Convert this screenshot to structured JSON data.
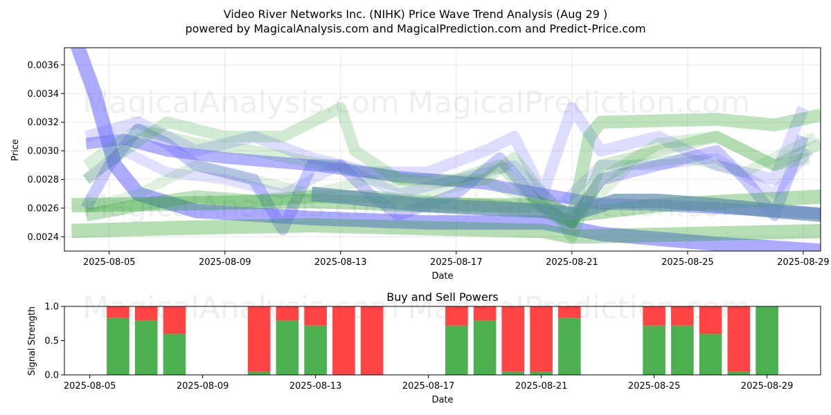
{
  "title_line1": "Video River Networks Inc. (NIHK) Price Wave Trend Analysis (Aug 29 )",
  "title_line2": "powered by MagicalAnalysis.com and MagicalPrediction.com and Predict-Price.com",
  "watermarks": [
    "MagicalAnalysis.com",
    "MagicalPrediction.com"
  ],
  "colors": {
    "green": "#2ca02c",
    "blue": "#6666ff",
    "buy": "#4caf50",
    "sell": "#ff4444",
    "sage": "#7fb07f",
    "steel": "#5f8faa"
  },
  "chart_data": [
    {
      "type": "line",
      "title": "",
      "xlabel": "Date",
      "ylabel": "Price",
      "x_start": "2025-08-04",
      "xlim": [
        -0.55,
        25.6
      ],
      "ylim": [
        0.0023,
        0.00372
      ],
      "x_ticks": [
        {
          "day": 1,
          "label": "2025-08-05"
        },
        {
          "day": 5,
          "label": "2025-08-09"
        },
        {
          "day": 9,
          "label": "2025-08-13"
        },
        {
          "day": 13,
          "label": "2025-08-17"
        },
        {
          "day": 17,
          "label": "2025-08-21"
        },
        {
          "day": 21,
          "label": "2025-08-25"
        },
        {
          "day": 25,
          "label": "2025-08-29"
        }
      ],
      "y_ticks": [
        {
          "value": 0.0024,
          "label": "0.0024"
        },
        {
          "value": 0.0026,
          "label": "0.0026"
        },
        {
          "value": 0.0028,
          "label": "0.0028"
        },
        {
          "value": 0.003,
          "label": "0.0030"
        },
        {
          "value": 0.0032,
          "label": "0.0032"
        },
        {
          "value": 0.0034,
          "label": "0.0034"
        },
        {
          "value": 0.0036,
          "label": "0.0036"
        }
      ],
      "grid": true,
      "series": [
        {
          "name": "blue-wave-long",
          "color": "blue",
          "opacity": 0.55,
          "width_value": 0.0001,
          "points": [
            [
              -0.4,
              0.0039
            ],
            [
              0.5,
              0.0034
            ],
            [
              1.2,
              0.0029
            ],
            [
              2,
              0.0027
            ],
            [
              4,
              0.00258
            ],
            [
              8,
              0.00253
            ],
            [
              12,
              0.0025
            ],
            [
              16,
              0.0025
            ],
            [
              18,
              0.00242
            ],
            [
              22,
              0.00235
            ],
            [
              25.8,
              0.0023
            ]
          ]
        },
        {
          "name": "blue-wave-medium",
          "color": "blue",
          "opacity": 0.5,
          "width_value": 8e-05,
          "points": [
            [
              0.2,
              0.00305
            ],
            [
              1.5,
              0.00308
            ],
            [
              3,
              0.003
            ],
            [
              5,
              0.00295
            ],
            [
              8,
              0.0029
            ],
            [
              11,
              0.00282
            ],
            [
              14,
              0.00277
            ],
            [
              16,
              0.0027
            ],
            [
              18,
              0.00263
            ],
            [
              20,
              0.00262
            ],
            [
              22,
              0.0026
            ],
            [
              25.8,
              0.00256
            ]
          ]
        },
        {
          "name": "blue-wave-short-1",
          "color": "blue",
          "opacity": 0.35,
          "width_value": 8e-05,
          "points": [
            [
              0.2,
              0.0026
            ],
            [
              1,
              0.0029
            ],
            [
              2,
              0.00315
            ],
            [
              3,
              0.00305
            ],
            [
              4,
              0.0029
            ],
            [
              6,
              0.0028
            ],
            [
              7,
              0.00245
            ],
            [
              8,
              0.0029
            ],
            [
              9,
              0.0029
            ],
            [
              10,
              0.0027
            ],
            [
              11,
              0.00255
            ],
            [
              13,
              0.0027
            ],
            [
              14.5,
              0.00295
            ],
            [
              16,
              0.0026
            ],
            [
              17,
              0.0025
            ],
            [
              18,
              0.0028
            ],
            [
              20,
              0.0029
            ],
            [
              22,
              0.003
            ],
            [
              23,
              0.0028
            ],
            [
              24,
              0.00255
            ],
            [
              25,
              0.0031
            ]
          ]
        },
        {
          "name": "blue-wave-short-2",
          "color": "blue",
          "opacity": 0.22,
          "width_value": 8e-05,
          "points": [
            [
              0.2,
              0.0031
            ],
            [
              2,
              0.0032
            ],
            [
              4,
              0.003
            ],
            [
              6,
              0.0031
            ],
            [
              8,
              0.00295
            ],
            [
              10,
              0.00285
            ],
            [
              12,
              0.00285
            ],
            [
              14,
              0.003
            ],
            [
              15,
              0.0031
            ],
            [
              16,
              0.0027
            ],
            [
              17,
              0.0033
            ],
            [
              18,
              0.003
            ],
            [
              20,
              0.0031
            ],
            [
              22,
              0.0029
            ],
            [
              24,
              0.0028
            ],
            [
              25,
              0.0033
            ]
          ]
        },
        {
          "name": "blue-wave-short-3",
          "color": "blue",
          "opacity": 0.2,
          "width_value": 7e-05,
          "points": [
            [
              0.2,
              0.0028
            ],
            [
              1.5,
              0.003
            ],
            [
              3,
              0.00285
            ],
            [
              5,
              0.0028
            ],
            [
              7,
              0.0027
            ],
            [
              9,
              0.0029
            ],
            [
              11,
              0.0027
            ],
            [
              13,
              0.0028
            ],
            [
              15,
              0.0029
            ],
            [
              16.5,
              0.0026
            ],
            [
              18,
              0.0029
            ],
            [
              20,
              0.0029
            ],
            [
              22,
              0.00295
            ],
            [
              24,
              0.0027
            ],
            [
              25.2,
              0.003
            ]
          ]
        },
        {
          "name": "green-wave-long",
          "color": "green",
          "opacity": 0.35,
          "width_value": 0.0001,
          "points": [
            [
              -0.3,
              0.00244
            ],
            [
              3,
              0.00246
            ],
            [
              8,
              0.00248
            ],
            [
              12,
              0.00246
            ],
            [
              16,
              0.00244
            ],
            [
              17,
              0.0024
            ],
            [
              25.8,
              0.00244
            ]
          ]
        },
        {
          "name": "green-wave-long-2",
          "color": "green",
          "opacity": 0.35,
          "width_value": 0.0001,
          "points": [
            [
              -0.3,
              0.00262
            ],
            [
              3,
              0.00263
            ],
            [
              8,
              0.00265
            ],
            [
              12,
              0.00262
            ],
            [
              16,
              0.00262
            ],
            [
              17,
              0.00255
            ],
            [
              20,
              0.00262
            ],
            [
              25.6,
              0.00268
            ]
          ]
        },
        {
          "name": "green-wave-medium",
          "color": "green",
          "opacity": 0.3,
          "width_value": 9e-05,
          "points": [
            [
              0.2,
              0.00255
            ],
            [
              2,
              0.00262
            ],
            [
              4,
              0.00268
            ],
            [
              6,
              0.00265
            ],
            [
              8,
              0.00268
            ],
            [
              10,
              0.00268
            ],
            [
              12,
              0.00264
            ],
            [
              14,
              0.00262
            ],
            [
              16,
              0.00258
            ],
            [
              17,
              0.0025
            ],
            [
              17.6,
              0.0031
            ],
            [
              18,
              0.0032
            ],
            [
              22,
              0.00322
            ],
            [
              24,
              0.00318
            ],
            [
              25.6,
              0.00325
            ]
          ]
        },
        {
          "name": "green-wave-short-1",
          "color": "green",
          "opacity": 0.22,
          "width_value": 8e-05,
          "points": [
            [
              0.2,
              0.0028
            ],
            [
              1.5,
              0.003
            ],
            [
              3,
              0.0032
            ],
            [
              5,
              0.0031
            ],
            [
              7,
              0.0031
            ],
            [
              8,
              0.0032
            ],
            [
              9,
              0.0033
            ],
            [
              9.5,
              0.003
            ],
            [
              11,
              0.0028
            ],
            [
              13,
              0.0028
            ],
            [
              14.5,
              0.0029
            ],
            [
              15.5,
              0.0027
            ],
            [
              16.5,
              0.00255
            ],
            [
              17,
              0.0024
            ],
            [
              18,
              0.0029
            ],
            [
              20,
              0.003
            ],
            [
              22,
              0.0031
            ],
            [
              23,
              0.003
            ],
            [
              24,
              0.0029
            ],
            [
              25.6,
              0.00305
            ]
          ]
        },
        {
          "name": "green-wave-short-2",
          "color": "green",
          "opacity": 0.18,
          "width_value": 8e-05,
          "points": [
            [
              0.2,
              0.0029
            ],
            [
              2,
              0.00315
            ],
            [
              4,
              0.00305
            ],
            [
              6,
              0.003
            ],
            [
              8,
              0.00292
            ],
            [
              10,
              0.00285
            ],
            [
              12,
              0.00278
            ],
            [
              14,
              0.0028
            ],
            [
              15,
              0.00295
            ],
            [
              16,
              0.0027
            ],
            [
              17,
              0.0025
            ],
            [
              18,
              0.0028
            ],
            [
              20,
              0.00305
            ],
            [
              22,
              0.0031
            ],
            [
              24,
              0.0029
            ],
            [
              25.2,
              0.00295
            ]
          ]
        },
        {
          "name": "green-wave-short-3",
          "color": "green",
          "opacity": 0.15,
          "width_value": 7e-05,
          "points": [
            [
              0.2,
              0.0026
            ],
            [
              2,
              0.0027
            ],
            [
              4,
              0.0029
            ],
            [
              6,
              0.0028
            ],
            [
              8,
              0.0027
            ],
            [
              10,
              0.0028
            ],
            [
              12,
              0.0027
            ],
            [
              14,
              0.0028
            ],
            [
              16,
              0.0026
            ],
            [
              17,
              0.0025
            ],
            [
              19,
              0.0029
            ],
            [
              21,
              0.00295
            ],
            [
              23,
              0.00285
            ],
            [
              25.4,
              0.0031
            ]
          ]
        },
        {
          "name": "steel-wave",
          "color": "steel",
          "opacity": 0.7,
          "width_value": 0.0001,
          "points": [
            [
              8,
              0.0027
            ],
            [
              12,
              0.00262
            ],
            [
              16,
              0.00258
            ],
            [
              17,
              0.00256
            ],
            [
              18.5,
              0.00265
            ],
            [
              20,
              0.00265
            ],
            [
              22,
              0.00262
            ],
            [
              24,
              0.00258
            ],
            [
              25.8,
              0.00255
            ]
          ]
        }
      ]
    },
    {
      "type": "bar",
      "title": "Buy and Sell Powers",
      "xlabel": "Date",
      "ylabel": "Signal Strength",
      "x_start": "2025-08-04",
      "xlim": [
        0.1,
        26.9
      ],
      "ylim": [
        0,
        1
      ],
      "x_ticks": [
        {
          "day": 1,
          "label": "2025-08-05"
        },
        {
          "day": 5,
          "label": "2025-08-09"
        },
        {
          "day": 9,
          "label": "2025-08-13"
        },
        {
          "day": 13,
          "label": "2025-08-17"
        },
        {
          "day": 17,
          "label": "2025-08-21"
        },
        {
          "day": 21,
          "label": "2025-08-25"
        },
        {
          "day": 25,
          "label": "2025-08-29"
        }
      ],
      "y_ticks": [
        {
          "value": 0.0,
          "label": "0.0"
        },
        {
          "value": 0.5,
          "label": "0.5"
        },
        {
          "value": 1.0,
          "label": "1.0"
        }
      ],
      "bars": [
        {
          "day": 2,
          "buy": 0.83,
          "sell": 0.17
        },
        {
          "day": 3,
          "buy": 0.79,
          "sell": 0.21
        },
        {
          "day": 4,
          "buy": 0.6,
          "sell": 0.4
        },
        {
          "day": 7,
          "buy": 0.05,
          "sell": 0.95
        },
        {
          "day": 8,
          "buy": 0.79,
          "sell": 0.21
        },
        {
          "day": 9,
          "buy": 0.72,
          "sell": 0.28
        },
        {
          "day": 10,
          "buy": 0.0,
          "sell": 1.0
        },
        {
          "day": 11,
          "buy": 0.0,
          "sell": 1.0
        },
        {
          "day": 14,
          "buy": 0.72,
          "sell": 0.28
        },
        {
          "day": 15,
          "buy": 0.79,
          "sell": 0.21
        },
        {
          "day": 16,
          "buy": 0.05,
          "sell": 0.95
        },
        {
          "day": 17,
          "buy": 0.05,
          "sell": 0.95
        },
        {
          "day": 18,
          "buy": 0.83,
          "sell": 0.17
        },
        {
          "day": 21,
          "buy": 0.72,
          "sell": 0.28
        },
        {
          "day": 22,
          "buy": 0.72,
          "sell": 0.28
        },
        {
          "day": 23,
          "buy": 0.6,
          "sell": 0.4
        },
        {
          "day": 24,
          "buy": 0.05,
          "sell": 0.95
        },
        {
          "day": 25,
          "buy": 1.0,
          "sell": 0.0
        }
      ]
    }
  ]
}
